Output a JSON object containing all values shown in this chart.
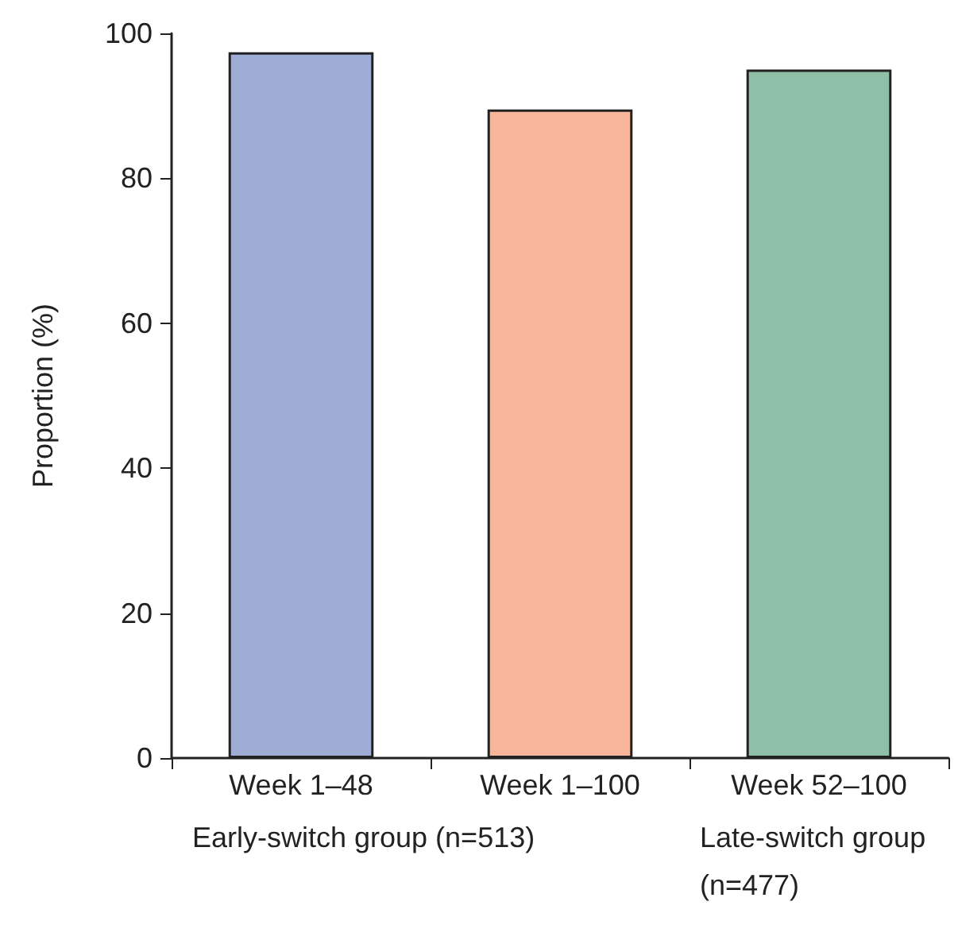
{
  "chart_data": {
    "type": "bar",
    "ylabel": "Proportion (%)",
    "categories": [
      "Week 1–48",
      "Week 1–100",
      "Week 52–100"
    ],
    "values": [
      97.4,
      89.5,
      95
    ],
    "colors": [
      "#9fadd6",
      "#f8b59a",
      "#8fbfa6"
    ],
    "ylim": [
      0,
      100
    ],
    "yticks": [
      0,
      20,
      40,
      60,
      80,
      100
    ],
    "grid": false,
    "annotations": [
      "Early-switch group (n=513)",
      "Late-switch group (n=477)"
    ]
  }
}
